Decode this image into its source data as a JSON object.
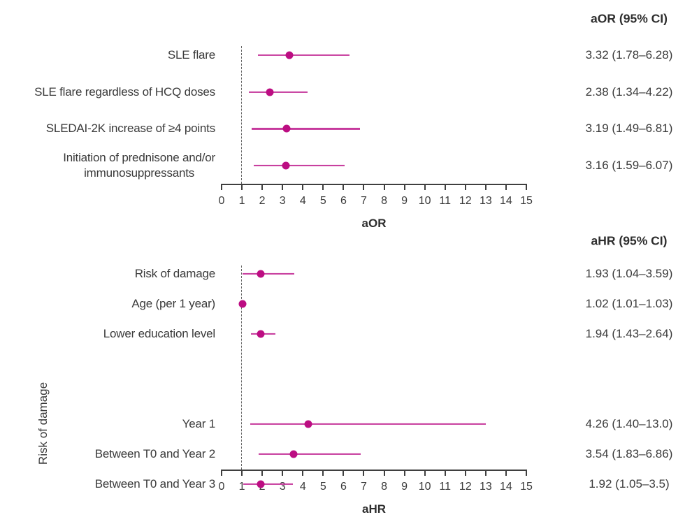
{
  "figure": {
    "background": "#ffffff",
    "text_color": "#3a3a3a",
    "accent": {
      "marker_color": "#bc0d82",
      "ci_line_color": "#c6399c",
      "reference_line_color": "#666666",
      "axis_color": "#3f3f3f"
    }
  },
  "chart_data": [
    {
      "type": "forest",
      "value_header": "aOR (95% CI)",
      "xlabel": "aOR",
      "xlim": [
        0,
        15
      ],
      "xticks": [
        0,
        1,
        2,
        3,
        4,
        5,
        6,
        7,
        8,
        9,
        10,
        11,
        12,
        13,
        14,
        15
      ],
      "reference_x": 1,
      "rows": [
        {
          "label": "SLE flare",
          "estimate": 3.32,
          "ci_low": 1.78,
          "ci_high": 6.28,
          "value_text": "3.32 (1.78–6.28)"
        },
        {
          "label": "SLE flare regardless of HCQ doses",
          "estimate": 2.38,
          "ci_low": 1.34,
          "ci_high": 4.22,
          "value_text": "2.38 (1.34–4.22)"
        },
        {
          "label": "SLEDAI-2K increase of ≥4 points",
          "estimate": 3.19,
          "ci_low": 1.49,
          "ci_high": 6.81,
          "value_text": "3.19 (1.49–6.81)"
        },
        {
          "label": "Initiation of prednisone and/or\nimmunosuppressants",
          "estimate": 3.16,
          "ci_low": 1.59,
          "ci_high": 6.07,
          "value_text": "3.16 (1.59–6.07)"
        }
      ]
    },
    {
      "type": "forest",
      "value_header": "aHR (95% CI)",
      "xlabel": "aHR",
      "group_label": "Risk of damage",
      "xlim": [
        0,
        15
      ],
      "xticks": [
        0,
        1,
        2,
        3,
        4,
        5,
        6,
        7,
        8,
        9,
        10,
        11,
        12,
        13,
        14,
        15
      ],
      "reference_x": 1,
      "rows": [
        {
          "label": "Risk of damage",
          "estimate": 1.93,
          "ci_low": 1.04,
          "ci_high": 3.59,
          "value_text": "1.93 (1.04–3.59)"
        },
        {
          "label": "Age (per 1 year)",
          "estimate": 1.02,
          "ci_low": 1.01,
          "ci_high": 1.03,
          "value_text": "1.02 (1.01–1.03)"
        },
        {
          "label": "Lower education level",
          "estimate": 1.94,
          "ci_low": 1.43,
          "ci_high": 2.64,
          "value_text": "1.94 (1.43–2.64)"
        },
        {
          "label": "Year 1",
          "estimate": 4.26,
          "ci_low": 1.4,
          "ci_high": 13.0,
          "value_text": "4.26 (1.40–13.0)",
          "gap_before": 2
        },
        {
          "label": "Between T0 and Year 2",
          "estimate": 3.54,
          "ci_low": 1.83,
          "ci_high": 6.86,
          "value_text": "3.54 (1.83–6.86)"
        },
        {
          "label": "Between T0 and Year 3",
          "estimate": 1.92,
          "ci_low": 1.05,
          "ci_high": 3.5,
          "value_text": "1.92 (1.05–3.5)"
        }
      ]
    }
  ]
}
